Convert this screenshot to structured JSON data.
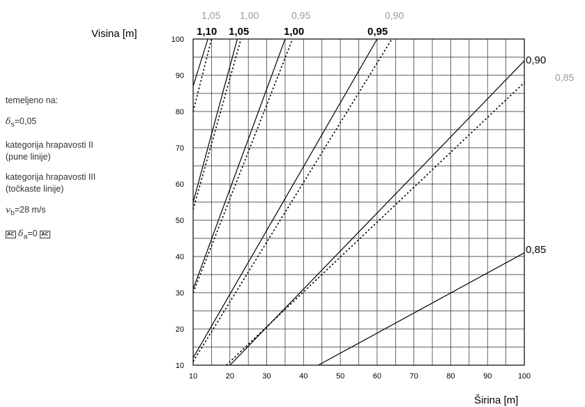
{
  "legend": {
    "based_on": "temeljeno na:",
    "delta_s_symbol": "δ",
    "delta_s_sub": "s",
    "delta_s_value": "=0,05",
    "terrain2_line1": "kategorija hrapavosti II",
    "terrain2_line2": "(pune linije)",
    "terrain3_line1": "kategorija hrapavosti III",
    "terrain3_line2": "(točkaste linije)",
    "vb_symbol": "v",
    "vb_sub": "b",
    "vb_value": "=28 m/s",
    "ac_mark": "AC",
    "delta_a_symbol": "δ",
    "delta_a_sub": "a",
    "delta_a_value": "=0"
  },
  "chart_data": {
    "type": "line",
    "xlabel": "Širina [m]",
    "ylabel": "Visina [m]",
    "xlim": [
      10,
      100
    ],
    "ylim": [
      10,
      100
    ],
    "xticks": [
      10,
      20,
      30,
      40,
      50,
      60,
      70,
      80,
      90,
      100
    ],
    "yticks": [
      10,
      20,
      30,
      40,
      50,
      60,
      70,
      80,
      90,
      100
    ],
    "grid": true,
    "series": [
      {
        "name": "1,10",
        "terrain": "II",
        "style": "solid",
        "x": [
          10,
          14
        ],
        "y": [
          87,
          100
        ]
      },
      {
        "name": "1,05",
        "terrain": "II",
        "style": "solid",
        "x": [
          10,
          22
        ],
        "y": [
          55,
          100
        ]
      },
      {
        "name": "1,00",
        "terrain": "II",
        "style": "solid",
        "x": [
          10,
          35
        ],
        "y": [
          31,
          100
        ]
      },
      {
        "name": "0,95",
        "terrain": "II",
        "style": "solid",
        "x": [
          10,
          60
        ],
        "y": [
          12,
          100
        ]
      },
      {
        "name": "0,90",
        "terrain": "II",
        "style": "solid",
        "x": [
          20,
          100
        ],
        "y": [
          10,
          94
        ]
      },
      {
        "name": "0,85",
        "terrain": "II",
        "style": "solid",
        "x": [
          44,
          100
        ],
        "y": [
          10,
          41
        ]
      },
      {
        "name": "1,05",
        "terrain": "III",
        "style": "dotted",
        "x": [
          10,
          15
        ],
        "y": [
          80,
          100
        ]
      },
      {
        "name": "1,00",
        "terrain": "III",
        "style": "dotted",
        "x": [
          10,
          23
        ],
        "y": [
          53,
          100
        ]
      },
      {
        "name": "0,95",
        "terrain": "III",
        "style": "dotted",
        "x": [
          10,
          37
        ],
        "y": [
          30,
          100
        ]
      },
      {
        "name": "0,90",
        "terrain": "III",
        "style": "dotted",
        "x": [
          10,
          64
        ],
        "y": [
          11,
          100
        ]
      },
      {
        "name": "0,85",
        "terrain": "III",
        "style": "dotted",
        "x": [
          19,
          100
        ],
        "y": [
          10,
          88
        ]
      }
    ]
  }
}
